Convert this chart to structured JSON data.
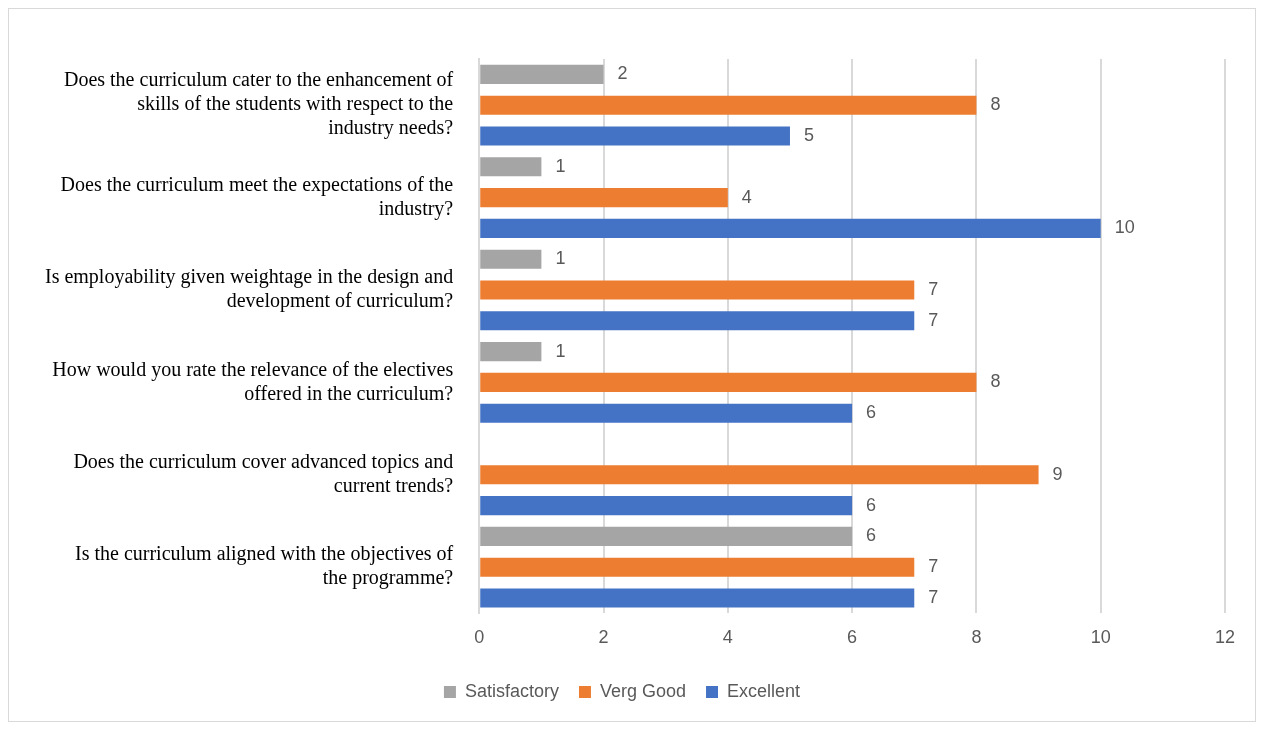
{
  "chart_data": {
    "type": "bar",
    "orientation": "horizontal",
    "categories": [
      "Does the curriculum cater to the enhancement of skills of the students with respect to the industry needs?",
      "Does the curriculum meet the expectations of the industry?",
      "Is employability given weightage in the design and development of curriculum?",
      "How would you rate the relevance of the electives offered in the curriculum?",
      "Does the curriculum cover advanced topics and current trends?",
      "Is the curriculum aligned with the objectives of the programme?"
    ],
    "series": [
      {
        "name": "Satisfactory",
        "color": "#a5a5a5",
        "values": [
          2,
          1,
          1,
          1,
          null,
          6
        ]
      },
      {
        "name": "Verg Good",
        "color": "#ed7d31",
        "values": [
          8,
          4,
          7,
          8,
          9,
          7
        ]
      },
      {
        "name": "Excellent",
        "color": "#4472c4",
        "values": [
          5,
          10,
          7,
          6,
          6,
          7
        ]
      }
    ],
    "xlim": [
      0,
      12
    ],
    "xticks": [
      0,
      2,
      4,
      6,
      8,
      10,
      12
    ],
    "grid": "x",
    "legend": "bottom",
    "data_labels": true
  }
}
